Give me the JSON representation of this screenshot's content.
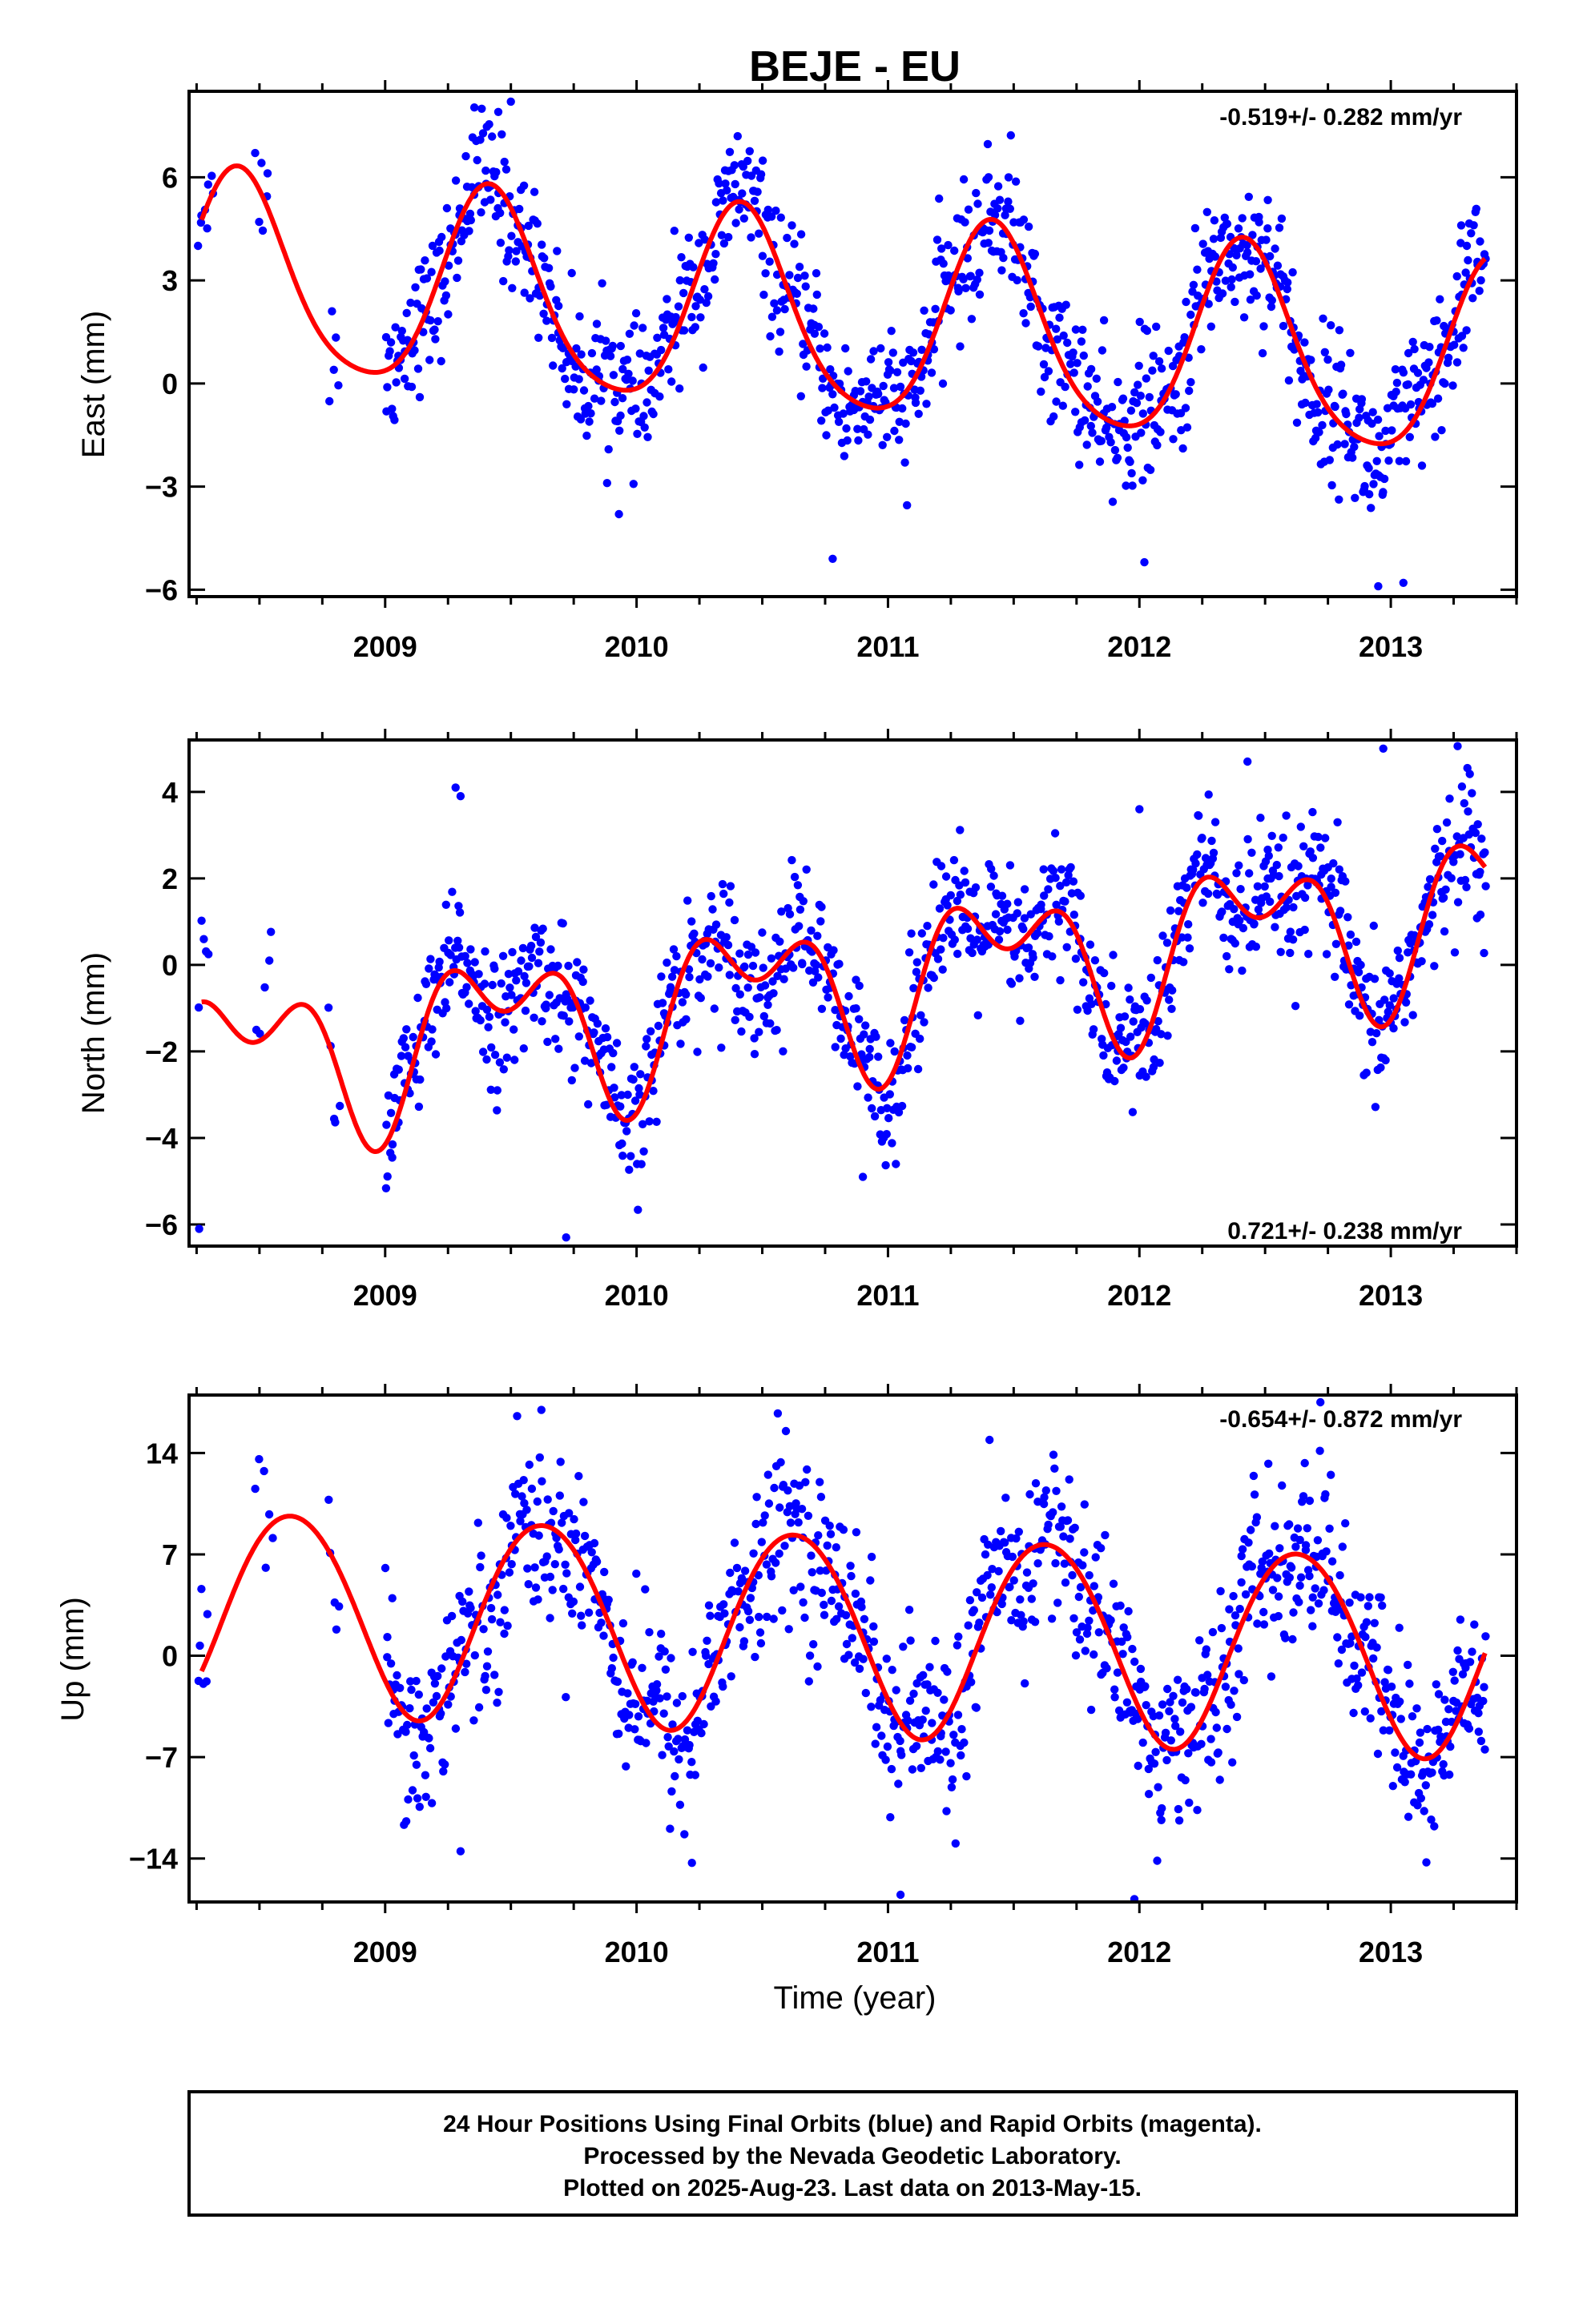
{
  "title": "BEJE - EU",
  "colors": {
    "observations": "#0000ff",
    "model_fit": "#ff0000",
    "frame": "#000000"
  },
  "xlabel": "Time (year)",
  "chart_data": [
    {
      "type": "scatter",
      "component": "east",
      "ylabel": "East (mm)",
      "rate_text": "-0.519+/- 0.282 mm/yr",
      "rate_position": "top-right",
      "xlim": [
        2008.22,
        2013.5
      ],
      "ylim": [
        -6.2,
        8.5
      ],
      "xticks": [
        2009,
        2010,
        2011,
        2012,
        2013
      ],
      "yticks": [
        6,
        3,
        0,
        -3,
        -6
      ],
      "model": {
        "offset": 1.8,
        "trend": -0.519,
        "t_ref": 2010.8,
        "amp1": 2.85,
        "peak1": 2009.42,
        "amp2": 0.45,
        "peak2": 2009.4
      },
      "observations": {
        "color": "blue",
        "segments": [
          {
            "start": 2008.25,
            "end": 2008.32,
            "count": 8,
            "noise": 0.6
          },
          {
            "start": 2008.48,
            "end": 2008.54,
            "count": 6,
            "noise": 0.8
          },
          {
            "start": 2008.77,
            "end": 2008.82,
            "count": 5,
            "noise": 1.2
          },
          {
            "start": 2009.0,
            "end": 2010.98,
            "count": 480,
            "noise": 0.95
          },
          {
            "start": 2010.98,
            "end": 2011.75,
            "count": 190,
            "noise": 1.0
          },
          {
            "start": 2011.75,
            "end": 2013.38,
            "count": 420,
            "noise": 1.05
          }
        ],
        "sample_points": [
          {
            "x": 2009.45,
            "y": 7.9
          },
          {
            "x": 2009.5,
            "y": 8.2
          },
          {
            "x": 2009.93,
            "y": -3.8
          },
          {
            "x": 2010.78,
            "y": -5.1
          },
          {
            "x": 2011.4,
            "y": 6.0
          },
          {
            "x": 2012.02,
            "y": -5.2
          },
          {
            "x": 2012.95,
            "y": -5.9
          },
          {
            "x": 2013.05,
            "y": -5.8
          },
          {
            "x": 2013.28,
            "y": 4.6
          }
        ]
      }
    },
    {
      "type": "scatter",
      "component": "north",
      "ylabel": "North (mm)",
      "rate_text": "0.721+/- 0.238 mm/yr",
      "rate_position": "bottom-right",
      "xlim": [
        2008.22,
        2013.5
      ],
      "ylim": [
        -6.5,
        5.2
      ],
      "xticks": [
        2009,
        2010,
        2011,
        2012,
        2013
      ],
      "yticks": [
        4,
        2,
        0,
        -2,
        -4,
        -6
      ],
      "model": {
        "offset": -0.5,
        "trend": 0.721,
        "t_ref": 2010.8,
        "amp1": 1.45,
        "peak1": 2009.45,
        "amp2": 1.05,
        "peak2": 2009.22
      },
      "observations": {
        "color": "blue",
        "segments": [
          {
            "start": 2008.25,
            "end": 2008.3,
            "count": 5,
            "noise": 1.0
          },
          {
            "start": 2008.48,
            "end": 2008.56,
            "count": 5,
            "noise": 0.9
          },
          {
            "start": 2008.77,
            "end": 2008.82,
            "count": 5,
            "noise": 0.9
          },
          {
            "start": 2009.0,
            "end": 2010.98,
            "count": 480,
            "noise": 0.75
          },
          {
            "start": 2010.98,
            "end": 2011.75,
            "count": 190,
            "noise": 0.8
          },
          {
            "start": 2011.75,
            "end": 2013.38,
            "count": 420,
            "noise": 0.8
          }
        ],
        "sample_points": [
          {
            "x": 2008.26,
            "y": -6.1
          },
          {
            "x": 2009.28,
            "y": 4.1
          },
          {
            "x": 2009.3,
            "y": 3.9
          },
          {
            "x": 2009.72,
            "y": -6.3
          },
          {
            "x": 2012.43,
            "y": 4.7
          },
          {
            "x": 2012.97,
            "y": 5.0
          },
          {
            "x": 2012.0,
            "y": 3.6
          },
          {
            "x": 2010.9,
            "y": -4.9
          }
        ]
      }
    },
    {
      "type": "scatter",
      "component": "up",
      "ylabel": "Up (mm)",
      "rate_text": "-0.654+/- 0.872 mm/yr",
      "rate_position": "top-right",
      "xlim": [
        2008.22,
        2013.5
      ],
      "ylim": [
        -17,
        18
      ],
      "xticks": [
        2009,
        2010,
        2011,
        2012,
        2013
      ],
      "yticks": [
        14,
        7,
        0,
        -7,
        -14
      ],
      "model": {
        "offset": 1.7,
        "trend": -0.654,
        "t_ref": 2010.8,
        "amp1": 6.9,
        "peak1": 2009.63,
        "amp2": 0.4,
        "peak2": 2009.4
      },
      "observations": {
        "color": "blue",
        "segments": [
          {
            "start": 2008.25,
            "end": 2008.3,
            "count": 6,
            "noise": 3.0
          },
          {
            "start": 2008.48,
            "end": 2008.56,
            "count": 6,
            "noise": 2.5
          },
          {
            "start": 2008.77,
            "end": 2008.82,
            "count": 5,
            "noise": 2.5
          },
          {
            "start": 2009.0,
            "end": 2010.98,
            "count": 480,
            "noise": 3.0
          },
          {
            "start": 2010.98,
            "end": 2011.75,
            "count": 190,
            "noise": 3.0
          },
          {
            "start": 2011.75,
            "end": 2013.38,
            "count": 420,
            "noise": 3.0
          }
        ],
        "sample_points": [
          {
            "x": 2009.67,
            "y": 18.2
          },
          {
            "x": 2011.05,
            "y": -16.5
          },
          {
            "x": 2011.98,
            "y": -16.8
          },
          {
            "x": 2012.72,
            "y": 17.5
          },
          {
            "x": 2009.3,
            "y": -13.5
          },
          {
            "x": 2010.22,
            "y": -14.3
          }
        ]
      }
    }
  ],
  "footer": {
    "line1": "24 Hour Positions Using Final Orbits (blue) and Rapid Orbits (magenta).",
    "line2": "Processed by the Nevada Geodetic Laboratory.",
    "line3": "Plotted on 2025-Aug-23. Last data on 2013-May-15."
  }
}
